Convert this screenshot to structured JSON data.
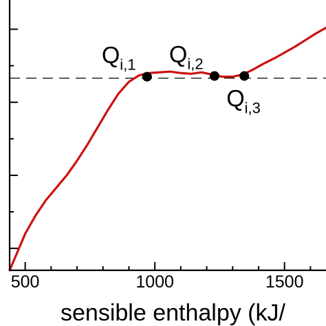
{
  "chart_data": {
    "type": "line",
    "title": "",
    "xlabel": "sensible enthalpy (kJ/",
    "ylabel": "",
    "xlim": [
      440,
      1660
    ],
    "ylim": [
      0.7,
      4.4
    ],
    "x_ticks": [
      {
        "value": 500,
        "label": "500"
      },
      {
        "value": 1000,
        "label": "1000"
      },
      {
        "value": 1500,
        "label": "1500"
      }
    ],
    "y_ticks": [
      {
        "value": 1.0
      },
      {
        "value": 2.0
      },
      {
        "value": 3.0
      },
      {
        "value": 4.0
      }
    ],
    "series": [
      {
        "color": "#cc1111",
        "x": [
          440,
          470,
          500,
          540,
          580,
          620,
          660,
          700,
          740,
          780,
          820,
          860,
          900,
          940,
          980,
          1020,
          1060,
          1100,
          1140,
          1180,
          1220,
          1260,
          1300,
          1340,
          1380,
          1420,
          1460,
          1500,
          1540,
          1580,
          1620,
          1660
        ],
        "y": [
          0.7,
          0.95,
          1.2,
          1.45,
          1.66,
          1.83,
          2.0,
          2.2,
          2.42,
          2.66,
          2.9,
          3.12,
          3.28,
          3.37,
          3.4,
          3.41,
          3.42,
          3.4,
          3.39,
          3.41,
          3.38,
          3.35,
          3.35,
          3.38,
          3.45,
          3.53,
          3.6,
          3.68,
          3.76,
          3.85,
          3.94,
          4.02
        ]
      }
    ],
    "reference_line": {
      "style": "dashed",
      "color": "#000000",
      "y": 3.33
    },
    "points": [
      {
        "x": 970,
        "y": 3.35,
        "label": "Q",
        "sub": "i,1",
        "label_position": "above-left"
      },
      {
        "x": 1230,
        "y": 3.36,
        "label": "Q",
        "sub": "i,2",
        "label_position": "above-left"
      },
      {
        "x": 1345,
        "y": 3.36,
        "label": "Q",
        "sub": "i,3",
        "label_position": "below-left"
      }
    ]
  }
}
